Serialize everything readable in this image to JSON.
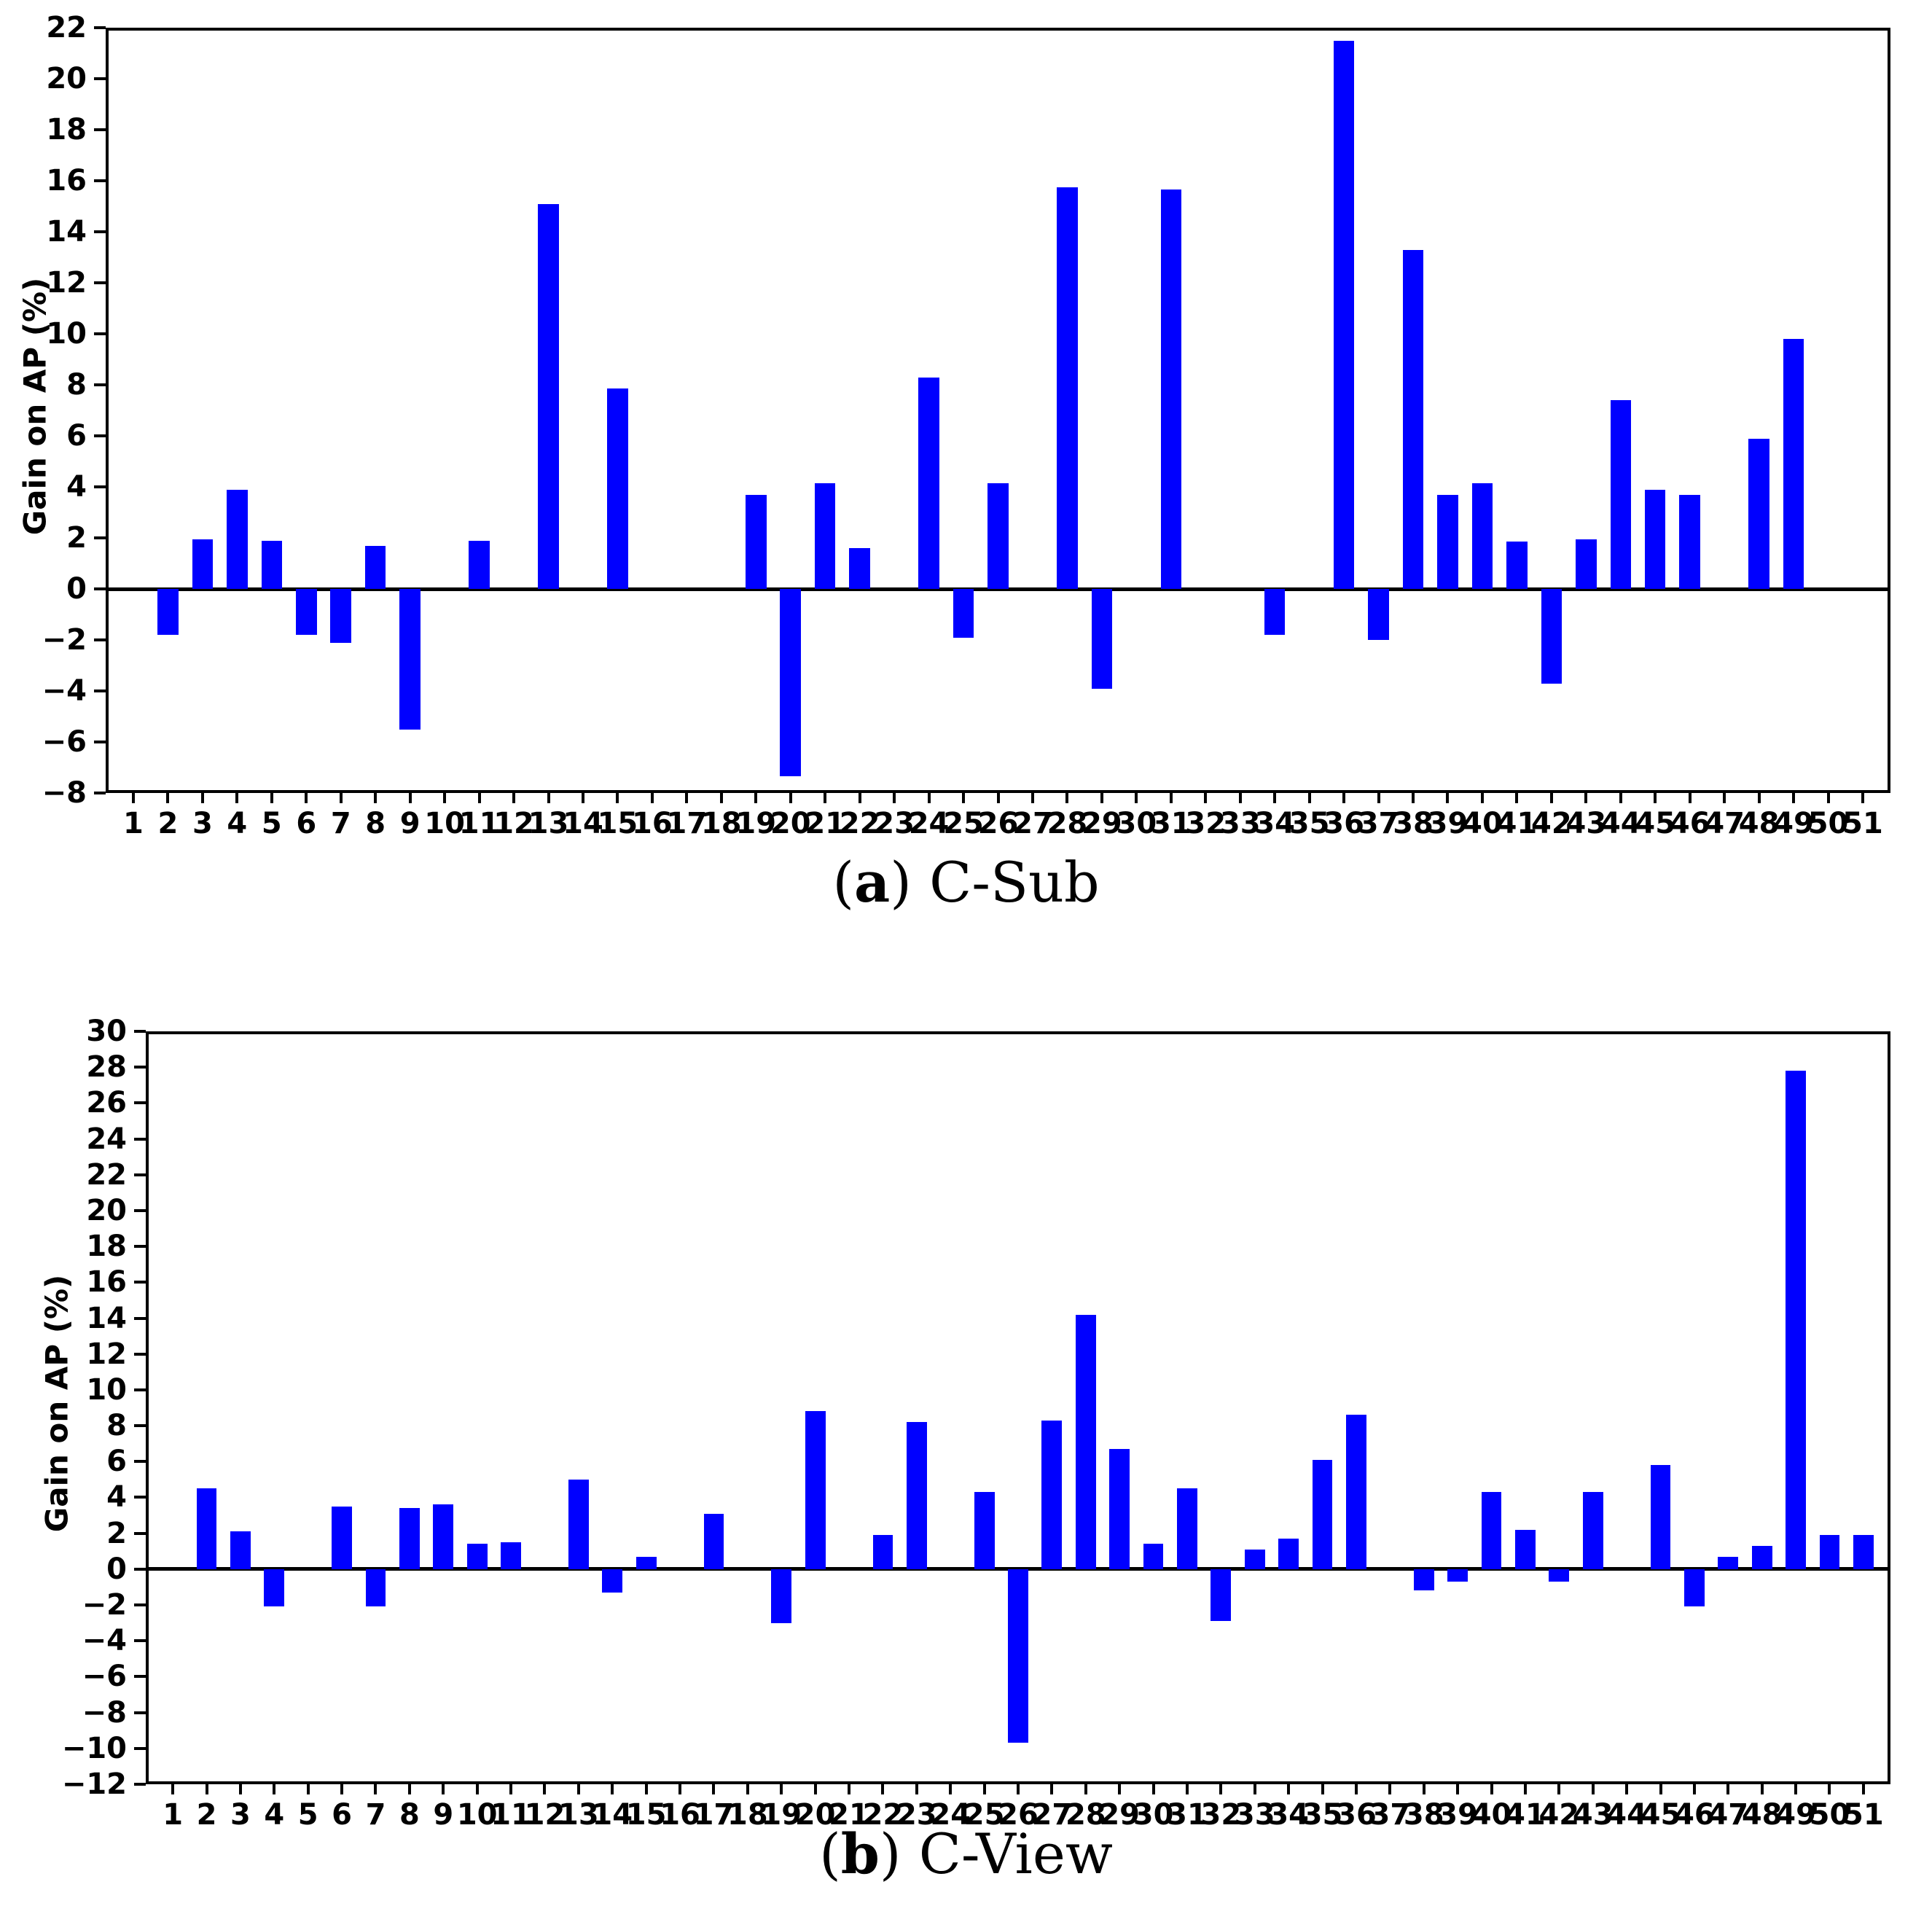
{
  "figure": {
    "background": "#ffffff",
    "bar_color": "#0000ff",
    "axis_color": "#000000"
  },
  "captions": [
    {
      "open": "(",
      "letter": "a",
      "close": ") ",
      "title": "C-Sub"
    },
    {
      "open": "(",
      "letter": "b",
      "close": ") ",
      "title": "C-View"
    }
  ],
  "chart_data": [
    {
      "type": "bar",
      "title": "(a) C-Sub",
      "xlabel": "",
      "ylabel": "Gain on AP (%)",
      "ylim": [
        -8,
        22
      ],
      "ytick_step": 2,
      "grid": false,
      "legend_position": "none",
      "bar_color": "#0000ff",
      "categories": [
        1,
        2,
        3,
        4,
        5,
        6,
        7,
        8,
        9,
        10,
        11,
        12,
        13,
        14,
        15,
        16,
        17,
        18,
        19,
        20,
        21,
        22,
        23,
        24,
        25,
        26,
        27,
        28,
        29,
        30,
        31,
        32,
        33,
        34,
        35,
        36,
        37,
        38,
        39,
        40,
        41,
        42,
        43,
        44,
        45,
        46,
        47,
        48,
        49,
        50,
        51
      ],
      "values": [
        0,
        -1.8,
        1.95,
        3.9,
        1.9,
        -1.8,
        -2.1,
        1.7,
        -5.5,
        0,
        1.9,
        0,
        15.1,
        0,
        7.85,
        0,
        0,
        0,
        3.7,
        -7.35,
        4.15,
        1.6,
        0,
        8.3,
        -1.9,
        4.15,
        0,
        15.75,
        -3.9,
        0,
        15.65,
        0,
        0,
        -1.8,
        0,
        21.5,
        -2.0,
        13.3,
        3.7,
        4.15,
        1.85,
        -3.7,
        1.95,
        7.4,
        3.9,
        3.7,
        0,
        5.9,
        9.8,
        0,
        0
      ],
      "ytick_labels": [
        "22",
        "20",
        "18",
        "16",
        "14",
        "12",
        "10",
        "8",
        "6",
        "4",
        "2",
        "0",
        "−2",
        "−4",
        "−6",
        "−8"
      ]
    },
    {
      "type": "bar",
      "title": "(b) C-View",
      "xlabel": "",
      "ylabel": "Gain on AP (%)",
      "ylim": [
        -12,
        30
      ],
      "ytick_step": 2,
      "grid": false,
      "legend_position": "none",
      "bar_color": "#0000ff",
      "categories": [
        1,
        2,
        3,
        4,
        5,
        6,
        7,
        8,
        9,
        10,
        11,
        12,
        13,
        14,
        15,
        16,
        17,
        18,
        19,
        20,
        21,
        22,
        23,
        24,
        25,
        26,
        27,
        28,
        29,
        30,
        31,
        32,
        33,
        34,
        35,
        36,
        37,
        38,
        39,
        40,
        41,
        42,
        43,
        44,
        45,
        46,
        47,
        48,
        49,
        50,
        51
      ],
      "values": [
        0,
        4.5,
        2.1,
        -2.1,
        0,
        3.5,
        -2.1,
        3.4,
        3.6,
        1.4,
        1.5,
        0,
        5.0,
        -1.3,
        0.7,
        0,
        3.1,
        0,
        -3.0,
        8.8,
        0,
        1.9,
        8.2,
        0,
        4.3,
        -9.7,
        8.3,
        14.2,
        6.7,
        1.4,
        4.5,
        -2.9,
        1.1,
        1.7,
        6.1,
        8.6,
        0,
        -1.2,
        -0.7,
        4.3,
        2.2,
        -0.7,
        4.3,
        0,
        5.8,
        -2.1,
        0.7,
        1.3,
        27.8,
        1.9,
        1.9
      ],
      "ytick_labels": [
        "30",
        "28",
        "26",
        "24",
        "22",
        "20",
        "18",
        "16",
        "14",
        "12",
        "10",
        "8",
        "6",
        "4",
        "2",
        "0",
        "−2",
        "−4",
        "−6",
        "−8",
        "−10",
        "−12"
      ]
    }
  ]
}
